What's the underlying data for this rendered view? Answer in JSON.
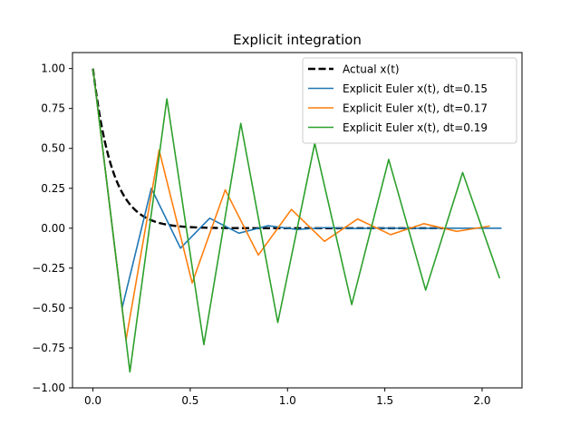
{
  "chart_data": {
    "type": "line",
    "title": "Explicit integration",
    "xlabel": "",
    "ylabel": "",
    "xlim": [
      -0.105,
      2.205
    ],
    "ylim": [
      -1.0,
      1.1
    ],
    "xticks": [
      0.0,
      0.5,
      1.0,
      1.5,
      2.0
    ],
    "xtick_labels": [
      "0.0",
      "0.5",
      "1.0",
      "1.5",
      "2.0"
    ],
    "yticks": [
      -1.0,
      -0.75,
      -0.5,
      -0.25,
      0.0,
      0.25,
      0.5,
      0.75,
      1.0
    ],
    "ytick_labels": [
      "−1.00",
      "−0.75",
      "−0.50",
      "−0.25",
      "0.00",
      "0.25",
      "0.50",
      "0.75",
      "1.00"
    ],
    "grid": false,
    "legend_position": "top-right",
    "series": [
      {
        "name": "Actual x(t)",
        "color": "#000000",
        "style": "dashed",
        "function": "exp",
        "rate": 10,
        "x_range": [
          0,
          1.8
        ]
      },
      {
        "name": "Explicit Euler x(t), dt=0.15",
        "color": "#1f77b4",
        "style": "solid",
        "x": [
          0.0,
          0.15,
          0.3,
          0.45,
          0.6,
          0.75,
          0.9,
          1.05,
          1.2,
          1.35,
          1.5,
          1.65,
          1.8,
          1.95,
          2.1
        ],
        "y": [
          1.0,
          -0.5,
          0.25,
          -0.125,
          0.0625,
          -0.03125,
          0.015625,
          -0.0078,
          0.0039,
          -0.002,
          0.001,
          -0.0005,
          0.0002,
          -0.0001,
          0.0
        ]
      },
      {
        "name": "Explicit Euler x(t), dt=0.17",
        "color": "#ff7f0e",
        "style": "solid",
        "x": [
          0.0,
          0.17,
          0.34,
          0.51,
          0.68,
          0.85,
          1.02,
          1.19,
          1.36,
          1.53,
          1.7,
          1.87,
          2.04
        ],
        "y": [
          1.0,
          -0.7,
          0.49,
          -0.343,
          0.2401,
          -0.1681,
          0.1176,
          -0.0824,
          0.0576,
          -0.0404,
          0.0282,
          -0.0198,
          0.0138
        ]
      },
      {
        "name": "Explicit Euler x(t), dt=0.19",
        "color": "#2ca02c",
        "style": "solid",
        "x": [
          0.0,
          0.19,
          0.38,
          0.57,
          0.76,
          0.95,
          1.14,
          1.33,
          1.52,
          1.71,
          1.9,
          2.09
        ],
        "y": [
          1.0,
          -0.9,
          0.81,
          -0.729,
          0.6561,
          -0.5905,
          0.5314,
          -0.4783,
          0.4305,
          -0.3874,
          0.3487,
          -0.3138
        ]
      }
    ]
  }
}
